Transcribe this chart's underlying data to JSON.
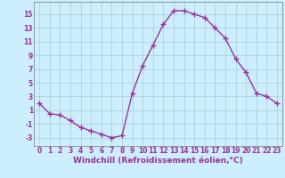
{
  "x": [
    0,
    1,
    2,
    3,
    4,
    5,
    6,
    7,
    8,
    9,
    10,
    11,
    12,
    13,
    14,
    15,
    16,
    17,
    18,
    19,
    20,
    21,
    22,
    23
  ],
  "y": [
    2.0,
    0.5,
    0.3,
    -0.5,
    -1.5,
    -2.0,
    -2.5,
    -3.0,
    -2.7,
    3.5,
    7.5,
    10.5,
    13.5,
    15.5,
    15.5,
    15.0,
    14.5,
    13.0,
    11.5,
    8.5,
    6.5,
    3.5,
    3.0,
    2.0
  ],
  "line_color": "#993399",
  "marker": "+",
  "marker_size": 4,
  "marker_lw": 1.0,
  "line_width": 1.0,
  "bg_color": "#cceeff",
  "grid_color": "#aacccc",
  "xlabel": "Windchill (Refroidissement éolien,°C)",
  "xlabel_color": "#993399",
  "xlabel_fontsize": 6.5,
  "yticks": [
    -3,
    -1,
    1,
    3,
    5,
    7,
    9,
    11,
    13,
    15
  ],
  "ylim": [
    -4.2,
    16.8
  ],
  "xlim": [
    -0.5,
    23.5
  ],
  "tick_fontsize": 5.5,
  "tick_color": "#993399",
  "spine_color": "#888888"
}
